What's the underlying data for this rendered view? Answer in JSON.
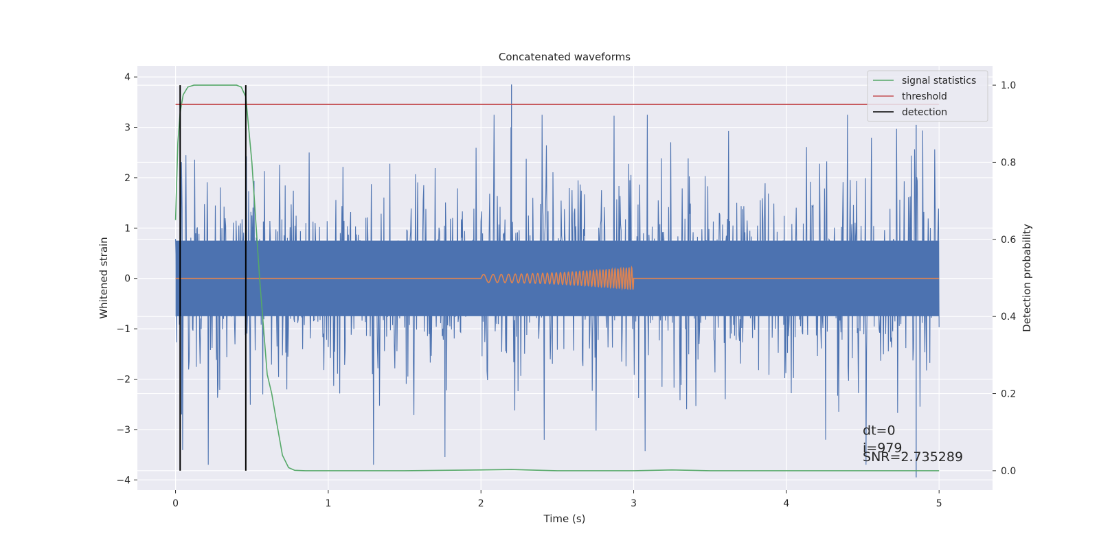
{
  "chart_data": {
    "type": "line",
    "title": "Concatenated waveforms",
    "xlabel": "Time (s)",
    "ylabel_left": "Whitened strain",
    "ylabel_right": "Detection probability",
    "xlim": [
      -0.25,
      5.35
    ],
    "ylim_left": [
      -4.2,
      4.22
    ],
    "ylim_right": [
      -0.05,
      1.05
    ],
    "xticks": [
      0,
      1,
      2,
      3,
      4,
      5
    ],
    "yticks_left": [
      -4,
      -3,
      -2,
      -1,
      0,
      1,
      2,
      3,
      4
    ],
    "yticks_right": [
      0.0,
      0.2,
      0.4,
      0.6,
      0.8,
      1.0
    ],
    "xtick_labels": [
      "0",
      "1",
      "2",
      "3",
      "4",
      "5"
    ],
    "ytick_labels_left": [
      "−4",
      "−3",
      "−2",
      "−1",
      "0",
      "1",
      "2",
      "3",
      "4"
    ],
    "ytick_labels_right": [
      "0.0",
      "0.2",
      "0.4",
      "0.6",
      "0.8",
      "1.0"
    ],
    "grid": true,
    "legend_position": "top-right",
    "series": [
      {
        "name": "",
        "axis": "left",
        "kind": "noise",
        "color": "#4c72b0",
        "x_range": [
          0,
          5
        ],
        "typical_band": [
          -0.75,
          0.75
        ],
        "peak_range": [
          -4,
          3.85
        ],
        "spikes": [
          [
            2.2,
            3.85
          ],
          [
            4.85,
            -3.95
          ],
          [
            0.04,
            -2.7
          ],
          [
            4.85,
            3.05
          ]
        ]
      },
      {
        "name": "",
        "axis": "left",
        "kind": "chirp",
        "color": "#dd8452",
        "x": [
          0,
          2,
          3,
          5
        ],
        "chirp_start": 2.0,
        "chirp_end": 3.0,
        "amplitude_start": 0.08,
        "amplitude_end": 0.22
      },
      {
        "name": "signal statistics",
        "axis": "right",
        "color": "#55a868",
        "x": [
          0,
          0.015,
          0.03,
          0.05,
          0.08,
          0.12,
          0.2,
          0.3,
          0.4,
          0.43,
          0.46,
          0.5,
          0.55,
          0.6,
          0.63,
          0.66,
          0.7,
          0.74,
          0.78,
          0.85,
          1.0,
          1.5,
          2.0,
          2.2,
          2.5,
          3.0,
          3.25,
          3.5,
          4.0,
          4.5,
          5.0
        ],
        "y": [
          0.65,
          0.85,
          0.93,
          0.975,
          0.995,
          1.0,
          1.0,
          1.0,
          1.0,
          0.995,
          0.97,
          0.8,
          0.5,
          0.25,
          0.2,
          0.13,
          0.04,
          0.008,
          0.001,
          0.0,
          0.0,
          0.0,
          0.002,
          0.003,
          0.0,
          0.0,
          0.002,
          0.0,
          0.0,
          0.0,
          0.0
        ]
      },
      {
        "name": "threshold",
        "axis": "right",
        "color": "#c44e52",
        "x": [
          0,
          5
        ],
        "y": [
          0.95,
          0.95
        ]
      },
      {
        "name": "detection",
        "axis": "right",
        "color": "#000000",
        "kind": "vlines",
        "x": [
          0.03,
          0.46
        ],
        "y_range": [
          0,
          1
        ]
      }
    ],
    "annotations": [
      {
        "text": "dt=0",
        "x": 4.5,
        "y": -3.1
      },
      {
        "text": "i=979",
        "x": 4.5,
        "y": -3.45
      },
      {
        "text": "SNR=2.735289",
        "x": 4.5,
        "y": -3.63
      }
    ]
  }
}
